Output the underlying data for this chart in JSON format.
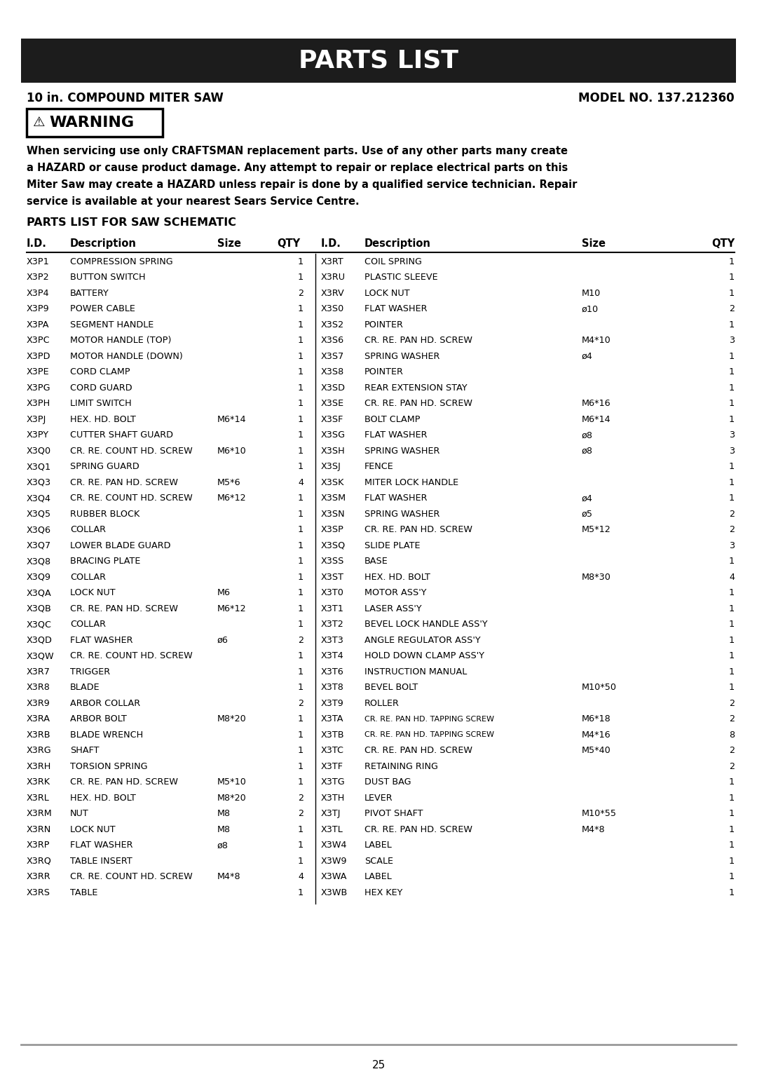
{
  "title": "PARTS LIST",
  "subtitle_left": "10 in. COMPOUND MITER SAW",
  "subtitle_right": "MODEL NO. 137.212360",
  "warning_text": "When servicing use only CRAFTSMAN replacement parts. Use of any other parts many create\na HAZARD or cause product damage. Any attempt to repair or replace electrical parts on this\nMiter Saw may create a HAZARD unless repair is done by a qualified service technician. Repair\nservice is available at your nearest Sears Service Centre.",
  "section_title": "PARTS LIST FOR SAW SCHEMATIC",
  "parts_left": [
    [
      "X3P1",
      "COMPRESSION SPRING",
      "",
      "1"
    ],
    [
      "X3P2",
      "BUTTON SWITCH",
      "",
      "1"
    ],
    [
      "X3P4",
      "BATTERY",
      "",
      "2"
    ],
    [
      "X3P9",
      "POWER CABLE",
      "",
      "1"
    ],
    [
      "X3PA",
      "SEGMENT HANDLE",
      "",
      "1"
    ],
    [
      "X3PC",
      "MOTOR HANDLE (TOP)",
      "",
      "1"
    ],
    [
      "X3PD",
      "MOTOR HANDLE (DOWN)",
      "",
      "1"
    ],
    [
      "X3PE",
      "CORD CLAMP",
      "",
      "1"
    ],
    [
      "X3PG",
      "CORD GUARD",
      "",
      "1"
    ],
    [
      "X3PH",
      "LIMIT SWITCH",
      "",
      "1"
    ],
    [
      "X3PJ",
      "HEX. HD. BOLT",
      "M6*14",
      "1"
    ],
    [
      "X3PY",
      "CUTTER SHAFT GUARD",
      "",
      "1"
    ],
    [
      "X3Q0",
      "CR. RE. COUNT HD. SCREW",
      "M6*10",
      "1"
    ],
    [
      "X3Q1",
      "SPRING GUARD",
      "",
      "1"
    ],
    [
      "X3Q3",
      "CR. RE. PAN HD. SCREW",
      "M5*6",
      "4"
    ],
    [
      "X3Q4",
      "CR. RE. COUNT HD. SCREW",
      "M6*12",
      "1"
    ],
    [
      "X3Q5",
      "RUBBER BLOCK",
      "",
      "1"
    ],
    [
      "X3Q6",
      "COLLAR",
      "",
      "1"
    ],
    [
      "X3Q7",
      "LOWER BLADE GUARD",
      "",
      "1"
    ],
    [
      "X3Q8",
      "BRACING PLATE",
      "",
      "1"
    ],
    [
      "X3Q9",
      "COLLAR",
      "",
      "1"
    ],
    [
      "X3QA",
      "LOCK NUT",
      "M6",
      "1"
    ],
    [
      "X3QB",
      "CR. RE. PAN HD. SCREW",
      "M6*12",
      "1"
    ],
    [
      "X3QC",
      "COLLAR",
      "",
      "1"
    ],
    [
      "X3QD",
      "FLAT WASHER",
      "ø6",
      "2"
    ],
    [
      "X3QW",
      "CR. RE. COUNT HD. SCREW",
      "",
      "1"
    ],
    [
      "X3R7",
      "TRIGGER",
      "",
      "1"
    ],
    [
      "X3R8",
      "BLADE",
      "",
      "1"
    ],
    [
      "X3R9",
      "ARBOR COLLAR",
      "",
      "2"
    ],
    [
      "X3RA",
      "ARBOR BOLT",
      "M8*20",
      "1"
    ],
    [
      "X3RB",
      "BLADE WRENCH",
      "",
      "1"
    ],
    [
      "X3RG",
      "SHAFT",
      "",
      "1"
    ],
    [
      "X3RH",
      "TORSION SPRING",
      "",
      "1"
    ],
    [
      "X3RK",
      "CR. RE. PAN HD. SCREW",
      "M5*10",
      "1"
    ],
    [
      "X3RL",
      "HEX. HD. BOLT",
      "M8*20",
      "2"
    ],
    [
      "X3RM",
      "NUT",
      "M8",
      "2"
    ],
    [
      "X3RN",
      "LOCK NUT",
      "M8",
      "1"
    ],
    [
      "X3RP",
      "FLAT WASHER",
      "ø8",
      "1"
    ],
    [
      "X3RQ",
      "TABLE INSERT",
      "",
      "1"
    ],
    [
      "X3RR",
      "CR. RE. COUNT HD. SCREW",
      "M4*8",
      "4"
    ],
    [
      "X3RS",
      "TABLE",
      "",
      "1"
    ]
  ],
  "parts_right": [
    [
      "X3RT",
      "COIL SPRING",
      "",
      "1"
    ],
    [
      "X3RU",
      "PLASTIC SLEEVE",
      "",
      "1"
    ],
    [
      "X3RV",
      "LOCK NUT",
      "M10",
      "1"
    ],
    [
      "X3S0",
      "FLAT WASHER",
      "ø10",
      "2"
    ],
    [
      "X3S2",
      "POINTER",
      "",
      "1"
    ],
    [
      "X3S6",
      "CR. RE. PAN HD. SCREW",
      "M4*10",
      "3"
    ],
    [
      "X3S7",
      "SPRING WASHER",
      "ø4",
      "1"
    ],
    [
      "X3S8",
      "POINTER",
      "",
      "1"
    ],
    [
      "X3SD",
      "REAR EXTENSION STAY",
      "",
      "1"
    ],
    [
      "X3SE",
      "CR. RE. PAN HD. SCREW",
      "M6*16",
      "1"
    ],
    [
      "X3SF",
      "BOLT CLAMP",
      "M6*14",
      "1"
    ],
    [
      "X3SG",
      "FLAT WASHER",
      "ø8",
      "3"
    ],
    [
      "X3SH",
      "SPRING WASHER",
      "ø8",
      "3"
    ],
    [
      "X3SJ",
      "FENCE",
      "",
      "1"
    ],
    [
      "X3SK",
      "MITER LOCK HANDLE",
      "",
      "1"
    ],
    [
      "X3SM",
      "FLAT WASHER",
      "ø4",
      "1"
    ],
    [
      "X3SN",
      "SPRING WASHER",
      "ø5",
      "2"
    ],
    [
      "X3SP",
      "CR. RE. PAN HD. SCREW",
      "M5*12",
      "2"
    ],
    [
      "X3SQ",
      "SLIDE PLATE",
      "",
      "3"
    ],
    [
      "X3SS",
      "BASE",
      "",
      "1"
    ],
    [
      "X3ST",
      "HEX. HD. BOLT",
      "M8*30",
      "4"
    ],
    [
      "X3T0",
      "MOTOR ASS'Y",
      "",
      "1"
    ],
    [
      "X3T1",
      "LASER ASS'Y",
      "",
      "1"
    ],
    [
      "X3T2",
      "BEVEL LOCK HANDLE ASS'Y",
      "",
      "1"
    ],
    [
      "X3T3",
      "ANGLE REGULATOR ASS'Y",
      "",
      "1"
    ],
    [
      "X3T4",
      "HOLD DOWN CLAMP ASS'Y",
      "",
      "1"
    ],
    [
      "X3T6",
      "INSTRUCTION MANUAL",
      "",
      "1"
    ],
    [
      "X3T8",
      "BEVEL BOLT",
      "M10*50",
      "1"
    ],
    [
      "X3T9",
      "ROLLER",
      "",
      "2"
    ],
    [
      "X3TA",
      "CR. RE. PAN HD. TAPPING SCREW",
      "M6*18",
      "2"
    ],
    [
      "X3TB",
      "CR. RE. PAN HD. TAPPING SCREW",
      "M4*16",
      "8"
    ],
    [
      "X3TC",
      "CR. RE. PAN HD. SCREW",
      "M5*40",
      "2"
    ],
    [
      "X3TF",
      "RETAINING RING",
      "",
      "2"
    ],
    [
      "X3TG",
      "DUST BAG",
      "",
      "1"
    ],
    [
      "X3TH",
      "LEVER",
      "",
      "1"
    ],
    [
      "X3TJ",
      "PIVOT SHAFT",
      "M10*55",
      "1"
    ],
    [
      "X3TL",
      "CR. RE. PAN HD. SCREW",
      "M4*8",
      "1"
    ],
    [
      "X3W4",
      "LABEL",
      "",
      "1"
    ],
    [
      "X3W9",
      "SCALE",
      "",
      "1"
    ],
    [
      "X3WA",
      "LABEL",
      "",
      "1"
    ],
    [
      "X3WB",
      "HEX KEY",
      "",
      "1"
    ]
  ],
  "page_number": "25",
  "bg_color": "#ffffff",
  "header_bg": "#1c1c1c",
  "header_text_color": "#ffffff"
}
